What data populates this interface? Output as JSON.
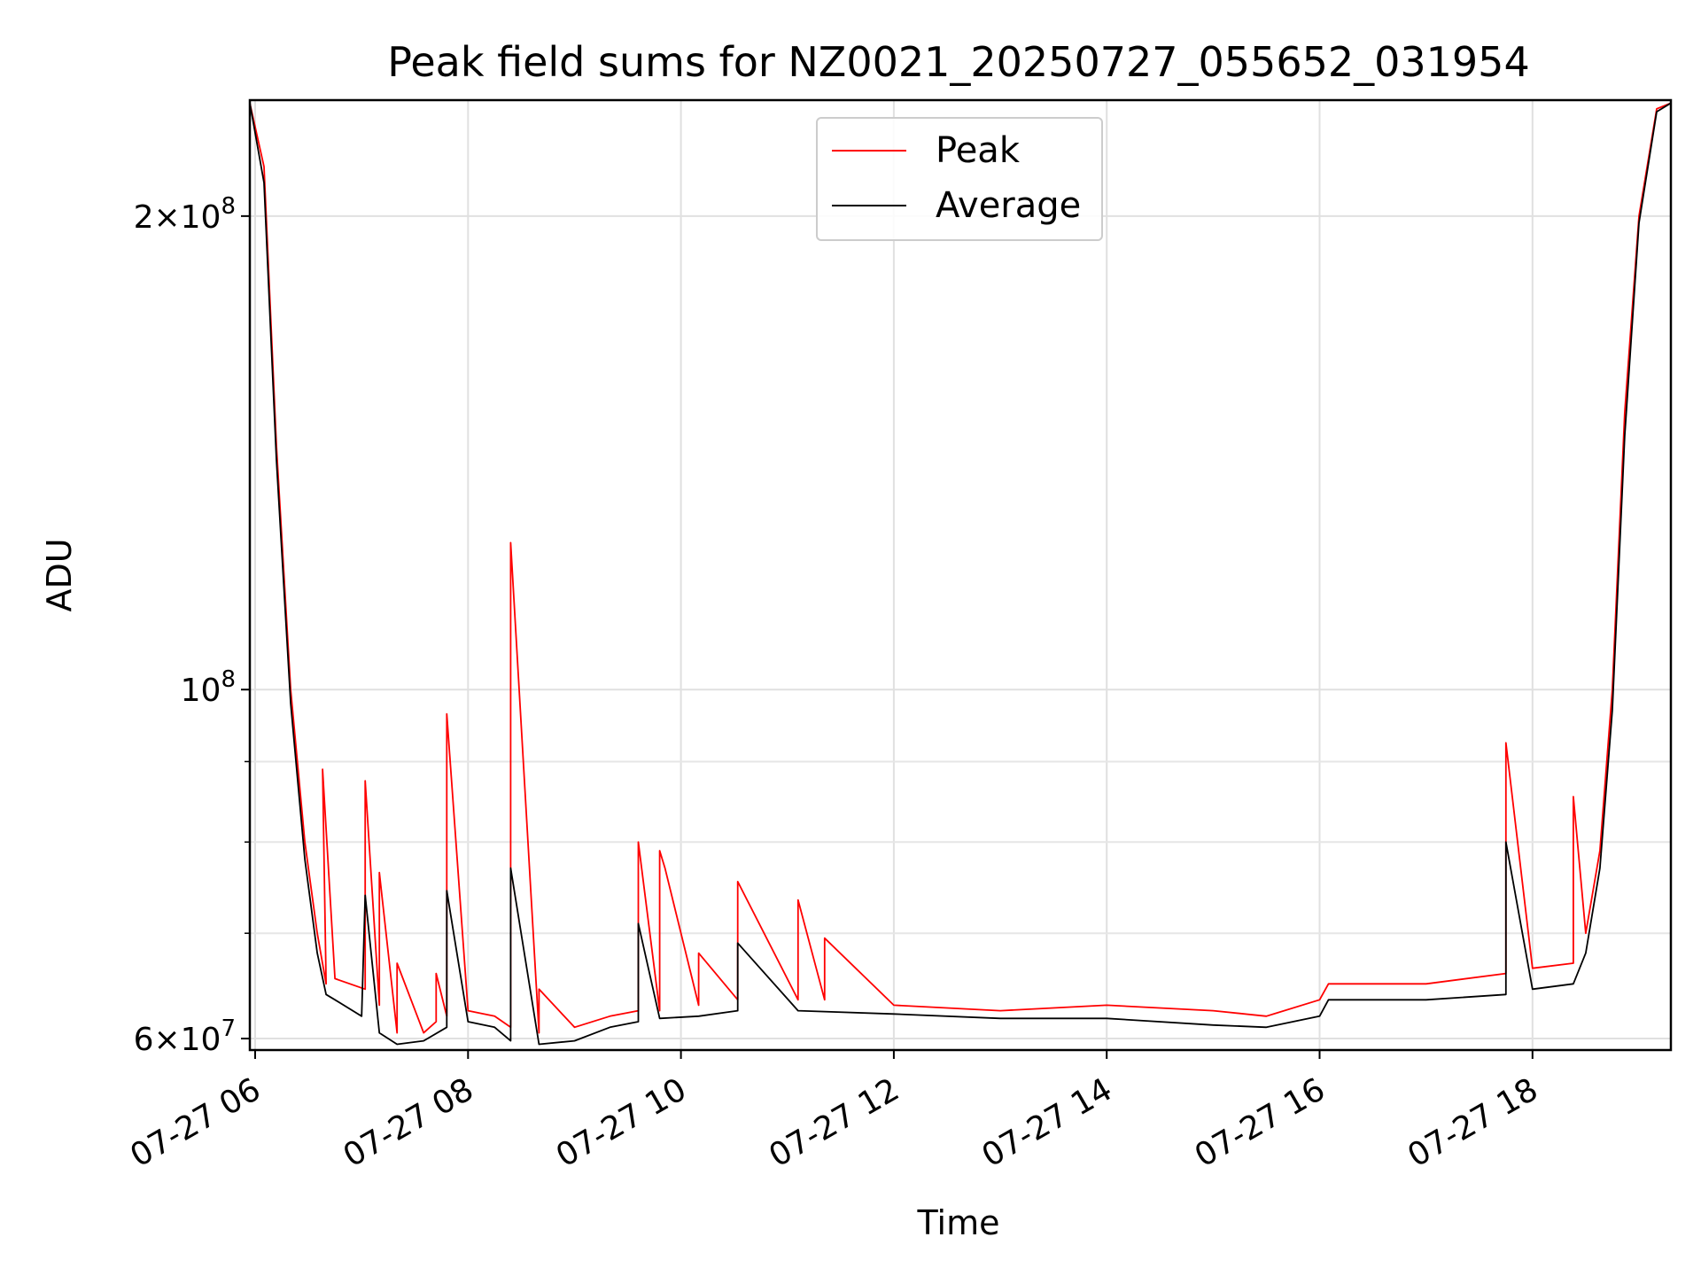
{
  "chart_data": {
    "type": "line",
    "title": "Peak field sums for NZ0021_20250727_055652_031954",
    "xlabel": "Time",
    "ylabel": "ADU",
    "y_scale": "log",
    "grid": true,
    "legend_position": "top-center",
    "x_range": [
      "2025-07-27 05:57",
      "2025-07-27 19:18"
    ],
    "ylim": [
      59000000,
      237000000
    ],
    "x_ticks": [
      "07-27 06",
      "07-27 08",
      "07-27 10",
      "07-27 12",
      "07-27 14",
      "07-27 16",
      "07-27 18"
    ],
    "x_tick_times": [
      "2025-07-27 06:00",
      "2025-07-27 08:00",
      "2025-07-27 10:00",
      "2025-07-27 12:00",
      "2025-07-27 14:00",
      "2025-07-27 16:00",
      "2025-07-27 18:00"
    ],
    "y_ticks": [
      {
        "value": 60000000,
        "base": "6",
        "times": "×",
        "exp_base": "10",
        "exp": "7"
      },
      {
        "value": 100000000,
        "base": "",
        "times": "",
        "exp_base": "10",
        "exp": "8"
      },
      {
        "value": 200000000,
        "base": "2",
        "times": "×",
        "exp_base": "10",
        "exp": "8"
      }
    ],
    "y_minor_ticks": [
      70000000,
      80000000,
      90000000
    ],
    "series": [
      {
        "name": "Peak",
        "color": "#ff0000",
        "points": [
          [
            "2025-07-27 05:57",
            236000000
          ],
          [
            "2025-07-27 06:05",
            215000000
          ],
          [
            "2025-07-27 06:12",
            143000000
          ],
          [
            "2025-07-27 06:20",
            100000000
          ],
          [
            "2025-07-27 06:28",
            80000000
          ],
          [
            "2025-07-27 06:35",
            70000000
          ],
          [
            "2025-07-27 06:40",
            65000000
          ],
          [
            "2025-07-27 06:38",
            89000000
          ],
          [
            "2025-07-27 06:45",
            65500000
          ],
          [
            "2025-07-27 07:02",
            64500000
          ],
          [
            "2025-07-27 07:02",
            87500000
          ],
          [
            "2025-07-27 07:10",
            63000000
          ],
          [
            "2025-07-27 07:10",
            76500000
          ],
          [
            "2025-07-27 07:20",
            60500000
          ],
          [
            "2025-07-27 07:20",
            67000000
          ],
          [
            "2025-07-27 07:35",
            60500000
          ],
          [
            "2025-07-27 07:42",
            61500000
          ],
          [
            "2025-07-27 07:42",
            66000000
          ],
          [
            "2025-07-27 07:48",
            62000000
          ],
          [
            "2025-07-27 07:48",
            96500000
          ],
          [
            "2025-07-27 08:00",
            62500000
          ],
          [
            "2025-07-27 08:15",
            62000000
          ],
          [
            "2025-07-27 08:24",
            61000000
          ],
          [
            "2025-07-27 08:24",
            124000000
          ],
          [
            "2025-07-27 08:40",
            60500000
          ],
          [
            "2025-07-27 08:40",
            64500000
          ],
          [
            "2025-07-27 09:00",
            61000000
          ],
          [
            "2025-07-27 09:20",
            62000000
          ],
          [
            "2025-07-27 09:36",
            62500000
          ],
          [
            "2025-07-27 09:36",
            80000000
          ],
          [
            "2025-07-27 09:48",
            62500000
          ],
          [
            "2025-07-27 09:48",
            79000000
          ],
          [
            "2025-07-27 09:51",
            77000000
          ],
          [
            "2025-07-27 10:10",
            63000000
          ],
          [
            "2025-07-27 10:10",
            68000000
          ],
          [
            "2025-07-27 10:32",
            63500000
          ],
          [
            "2025-07-27 10:32",
            75500000
          ],
          [
            "2025-07-27 11:06",
            63500000
          ],
          [
            "2025-07-27 11:06",
            73500000
          ],
          [
            "2025-07-27 11:21",
            63500000
          ],
          [
            "2025-07-27 11:21",
            69500000
          ],
          [
            "2025-07-27 12:00",
            63000000
          ],
          [
            "2025-07-27 13:00",
            62500000
          ],
          [
            "2025-07-27 14:00",
            63000000
          ],
          [
            "2025-07-27 15:00",
            62500000
          ],
          [
            "2025-07-27 15:30",
            62000000
          ],
          [
            "2025-07-27 16:00",
            63500000
          ],
          [
            "2025-07-27 16:05",
            65000000
          ],
          [
            "2025-07-27 17:00",
            65000000
          ],
          [
            "2025-07-27 17:45",
            66000000
          ],
          [
            "2025-07-27 17:45",
            92500000
          ],
          [
            "2025-07-27 18:00",
            66500000
          ],
          [
            "2025-07-27 18:23",
            67000000
          ],
          [
            "2025-07-27 18:23",
            85500000
          ],
          [
            "2025-07-27 18:30",
            70000000
          ],
          [
            "2025-07-27 18:38",
            79000000
          ],
          [
            "2025-07-27 18:45",
            100000000
          ],
          [
            "2025-07-27 18:52",
            150000000
          ],
          [
            "2025-07-27 19:00",
            200000000
          ],
          [
            "2025-07-27 19:10",
            234000000
          ],
          [
            "2025-07-27 19:18",
            236000000
          ]
        ]
      },
      {
        "name": "Average",
        "color": "#000000",
        "points": [
          [
            "2025-07-27 05:57",
            236000000
          ],
          [
            "2025-07-27 06:05",
            210000000
          ],
          [
            "2025-07-27 06:12",
            140000000
          ],
          [
            "2025-07-27 06:20",
            98000000
          ],
          [
            "2025-07-27 06:28",
            78000000
          ],
          [
            "2025-07-27 06:35",
            68000000
          ],
          [
            "2025-07-27 06:40",
            64000000
          ],
          [
            "2025-07-27 06:45",
            63500000
          ],
          [
            "2025-07-27 07:00",
            62000000
          ],
          [
            "2025-07-27 07:02",
            74000000
          ],
          [
            "2025-07-27 07:10",
            60500000
          ],
          [
            "2025-07-27 07:20",
            59500000
          ],
          [
            "2025-07-27 07:35",
            59800000
          ],
          [
            "2025-07-27 07:48",
            61000000
          ],
          [
            "2025-07-27 07:48",
            74500000
          ],
          [
            "2025-07-27 08:00",
            61500000
          ],
          [
            "2025-07-27 08:15",
            61000000
          ],
          [
            "2025-07-27 08:24",
            59800000
          ],
          [
            "2025-07-27 08:24",
            77000000
          ],
          [
            "2025-07-27 08:40",
            59500000
          ],
          [
            "2025-07-27 09:00",
            59800000
          ],
          [
            "2025-07-27 09:20",
            61000000
          ],
          [
            "2025-07-27 09:36",
            61500000
          ],
          [
            "2025-07-27 09:36",
            71000000
          ],
          [
            "2025-07-27 09:48",
            61800000
          ],
          [
            "2025-07-27 10:10",
            62000000
          ],
          [
            "2025-07-27 10:32",
            62500000
          ],
          [
            "2025-07-27 10:32",
            69000000
          ],
          [
            "2025-07-27 11:06",
            62500000
          ],
          [
            "2025-07-27 12:00",
            62200000
          ],
          [
            "2025-07-27 13:00",
            61800000
          ],
          [
            "2025-07-27 14:00",
            61800000
          ],
          [
            "2025-07-27 15:00",
            61200000
          ],
          [
            "2025-07-27 15:30",
            61000000
          ],
          [
            "2025-07-27 16:00",
            62000000
          ],
          [
            "2025-07-27 16:05",
            63500000
          ],
          [
            "2025-07-27 17:00",
            63500000
          ],
          [
            "2025-07-27 17:45",
            64000000
          ],
          [
            "2025-07-27 17:45",
            80000000
          ],
          [
            "2025-07-27 18:00",
            64500000
          ],
          [
            "2025-07-27 18:23",
            65000000
          ],
          [
            "2025-07-27 18:30",
            68000000
          ],
          [
            "2025-07-27 18:38",
            77000000
          ],
          [
            "2025-07-27 18:45",
            97000000
          ],
          [
            "2025-07-27 18:52",
            145000000
          ],
          [
            "2025-07-27 19:00",
            198000000
          ],
          [
            "2025-07-27 19:10",
            233000000
          ],
          [
            "2025-07-27 19:18",
            236000000
          ]
        ]
      }
    ]
  }
}
